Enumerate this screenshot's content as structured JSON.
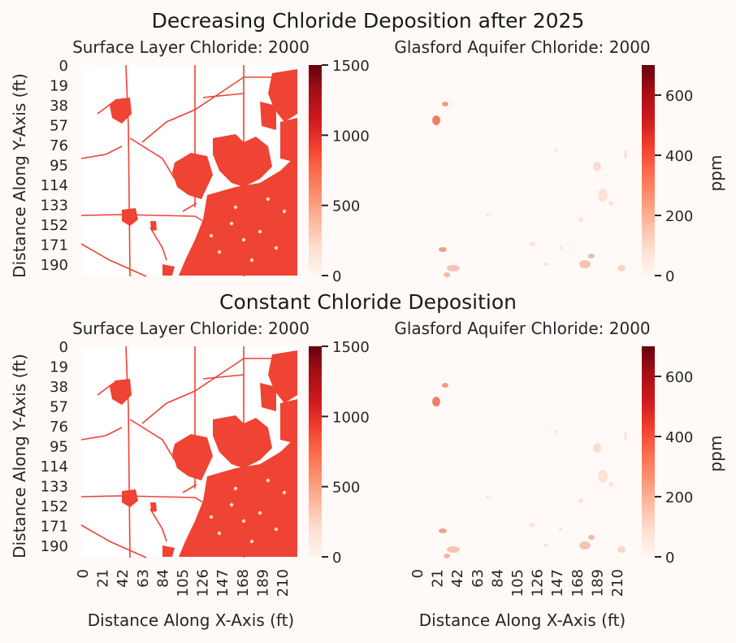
{
  "figure": {
    "rows": [
      {
        "title": "Decreasing Chloride Deposition after 2025",
        "panels": [
          {
            "title": "Surface Layer Chloride: 2000",
            "colorbar_ticks": [
              "0",
              "500",
              "1000",
              "1500"
            ],
            "colorbar_label": ""
          },
          {
            "title": "Glasford Aquifer Chloride: 2000",
            "colorbar_ticks": [
              "0",
              "200",
              "400",
              "600"
            ],
            "colorbar_label": "ppm"
          }
        ]
      },
      {
        "title": "Constant Chloride Deposition",
        "panels": [
          {
            "title": "Surface Layer Chloride: 2000",
            "colorbar_ticks": [
              "0",
              "500",
              "1000",
              "1500"
            ],
            "colorbar_label": ""
          },
          {
            "title": "Glasford Aquifer Chloride: 2000",
            "colorbar_ticks": [
              "0",
              "200",
              "400",
              "600"
            ],
            "colorbar_label": "ppm"
          }
        ]
      }
    ],
    "y_tick_labels": [
      "0",
      "19",
      "38",
      "57",
      "76",
      "95",
      "114",
      "133",
      "152",
      "171",
      "190"
    ],
    "x_tick_labels": [
      "0",
      "21",
      "42",
      "63",
      "84",
      "105",
      "126",
      "147",
      "168",
      "189",
      "210"
    ],
    "y_label": "Distance Along Y-Axis (ft)",
    "x_label": "Distance Along X-Axis (ft)",
    "colormap": [
      "#fff5f0",
      "#fee0d2",
      "#fcbba1",
      "#fc9272",
      "#fb6a4a",
      "#ef3b2c",
      "#cb181d",
      "#a50f15",
      "#67000d"
    ]
  },
  "chart_data": [
    {
      "type": "heatmap",
      "title": "Surface Layer Chloride: 2000",
      "xlabel": "",
      "ylabel": "Distance Along Y-Axis (ft)",
      "x_ticks": [
        0,
        21,
        42,
        63,
        84,
        105,
        126,
        147,
        168,
        189,
        210
      ],
      "y_ticks": [
        0,
        19,
        38,
        57,
        76,
        95,
        114,
        133,
        152,
        171,
        190
      ],
      "color_range": [
        0,
        1500
      ],
      "colorbar_ticks": [
        0,
        500,
        1000,
        1500
      ],
      "typical_value": 1000
    },
    {
      "type": "heatmap",
      "title": "Glasford Aquifer Chloride: 2000",
      "xlabel": "",
      "ylabel": "",
      "x_ticks": [
        0,
        21,
        42,
        63,
        84,
        105,
        126,
        147,
        168,
        189,
        210
      ],
      "y_ticks": [
        0,
        19,
        38,
        57,
        76,
        95,
        114,
        133,
        152,
        171,
        190
      ],
      "color_range": [
        0,
        700
      ],
      "colorbar_ticks": [
        0,
        200,
        400,
        600
      ],
      "colorbar_label": "ppm",
      "typical_value": 50
    },
    {
      "type": "heatmap",
      "title": "Surface Layer Chloride: 2000",
      "xlabel": "Distance Along X-Axis (ft)",
      "ylabel": "Distance Along Y-Axis (ft)",
      "x_ticks": [
        0,
        21,
        42,
        63,
        84,
        105,
        126,
        147,
        168,
        189,
        210
      ],
      "y_ticks": [
        0,
        19,
        38,
        57,
        76,
        95,
        114,
        133,
        152,
        171,
        190
      ],
      "color_range": [
        0,
        1500
      ],
      "colorbar_ticks": [
        0,
        500,
        1000,
        1500
      ],
      "typical_value": 1000
    },
    {
      "type": "heatmap",
      "title": "Glasford Aquifer Chloride: 2000",
      "xlabel": "Distance Along X-Axis (ft)",
      "ylabel": "",
      "x_ticks": [
        0,
        21,
        42,
        63,
        84,
        105,
        126,
        147,
        168,
        189,
        210
      ],
      "y_ticks": [
        0,
        19,
        38,
        57,
        76,
        95,
        114,
        133,
        152,
        171,
        190
      ],
      "color_range": [
        0,
        700
      ],
      "colorbar_ticks": [
        0,
        200,
        400,
        600
      ],
      "colorbar_label": "ppm",
      "typical_value": 50
    }
  ]
}
